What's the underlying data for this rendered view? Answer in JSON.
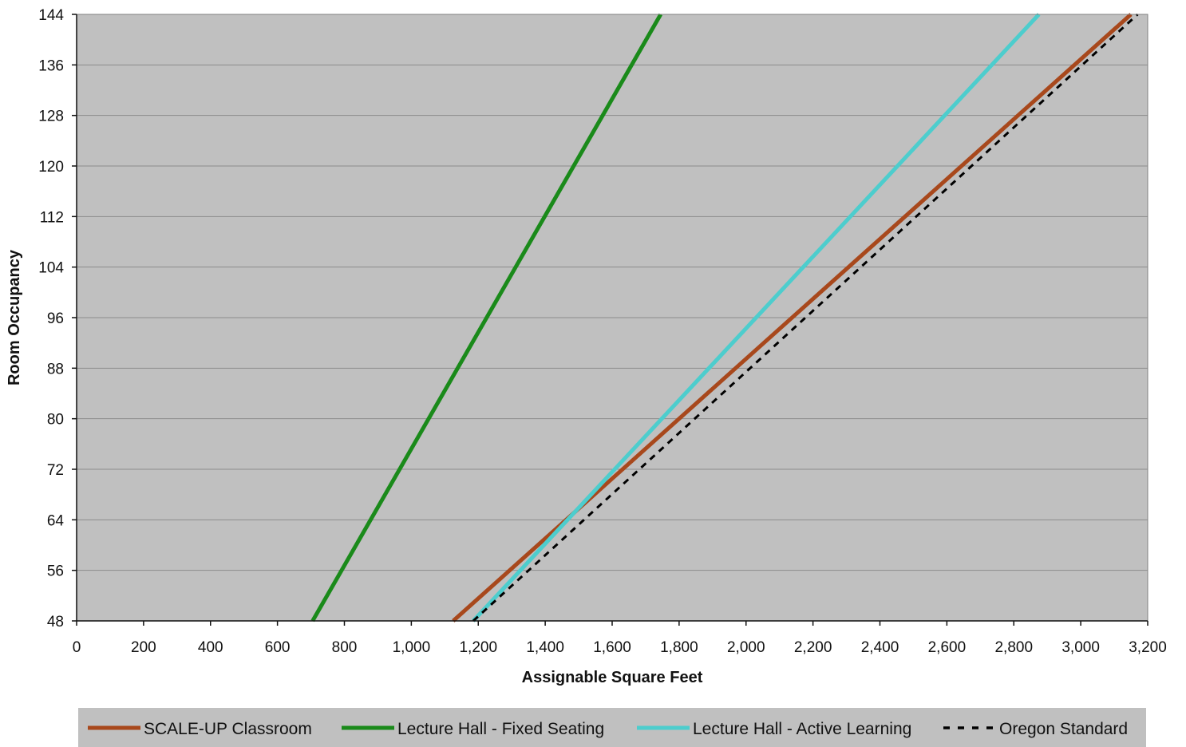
{
  "chart_data": {
    "type": "line",
    "title": "",
    "xlabel": "Assignable Square Feet",
    "ylabel": "Room Occupancy",
    "xlim": [
      0,
      3200
    ],
    "ylim": [
      48,
      144
    ],
    "x_ticks": [
      0,
      200,
      400,
      600,
      800,
      1000,
      1200,
      1400,
      1600,
      1800,
      2000,
      2200,
      2400,
      2600,
      2800,
      3000,
      3200
    ],
    "x_tick_labels": [
      "0",
      "200",
      "400",
      "600",
      "800",
      "1,000",
      "1,200",
      "1,400",
      "1,600",
      "1,800",
      "2,000",
      "2,200",
      "2,400",
      "2,600",
      "2,800",
      "3,000",
      "3,200"
    ],
    "y_ticks": [
      48,
      56,
      64,
      72,
      80,
      88,
      96,
      104,
      112,
      120,
      128,
      136,
      144
    ],
    "y_tick_labels": [
      "48",
      "56",
      "64",
      "72",
      "80",
      "88",
      "96",
      "104",
      "112",
      "120",
      "128",
      "136",
      "144"
    ],
    "grid": "horizontal",
    "plot_background": "#c0c0c0",
    "legend_position": "bottom",
    "series": [
      {
        "name": "SCALE-UP Classroom",
        "color": "#a8481c",
        "style": "solid",
        "x": [
          1125,
          3150
        ],
        "y": [
          48,
          144
        ]
      },
      {
        "name": "Lecture Hall - Fixed Seating",
        "color": "#1a8a1a",
        "style": "solid",
        "x": [
          705,
          1745
        ],
        "y": [
          48,
          144
        ]
      },
      {
        "name": "Lecture Hall - Active Learning",
        "color": "#4dcdcd",
        "style": "solid",
        "x": [
          1185,
          2875
        ],
        "y": [
          48,
          144
        ]
      },
      {
        "name": "Oregon Standard",
        "color": "#000000",
        "style": "dashed",
        "x": [
          1185,
          3170
        ],
        "y": [
          48,
          144
        ]
      }
    ]
  }
}
